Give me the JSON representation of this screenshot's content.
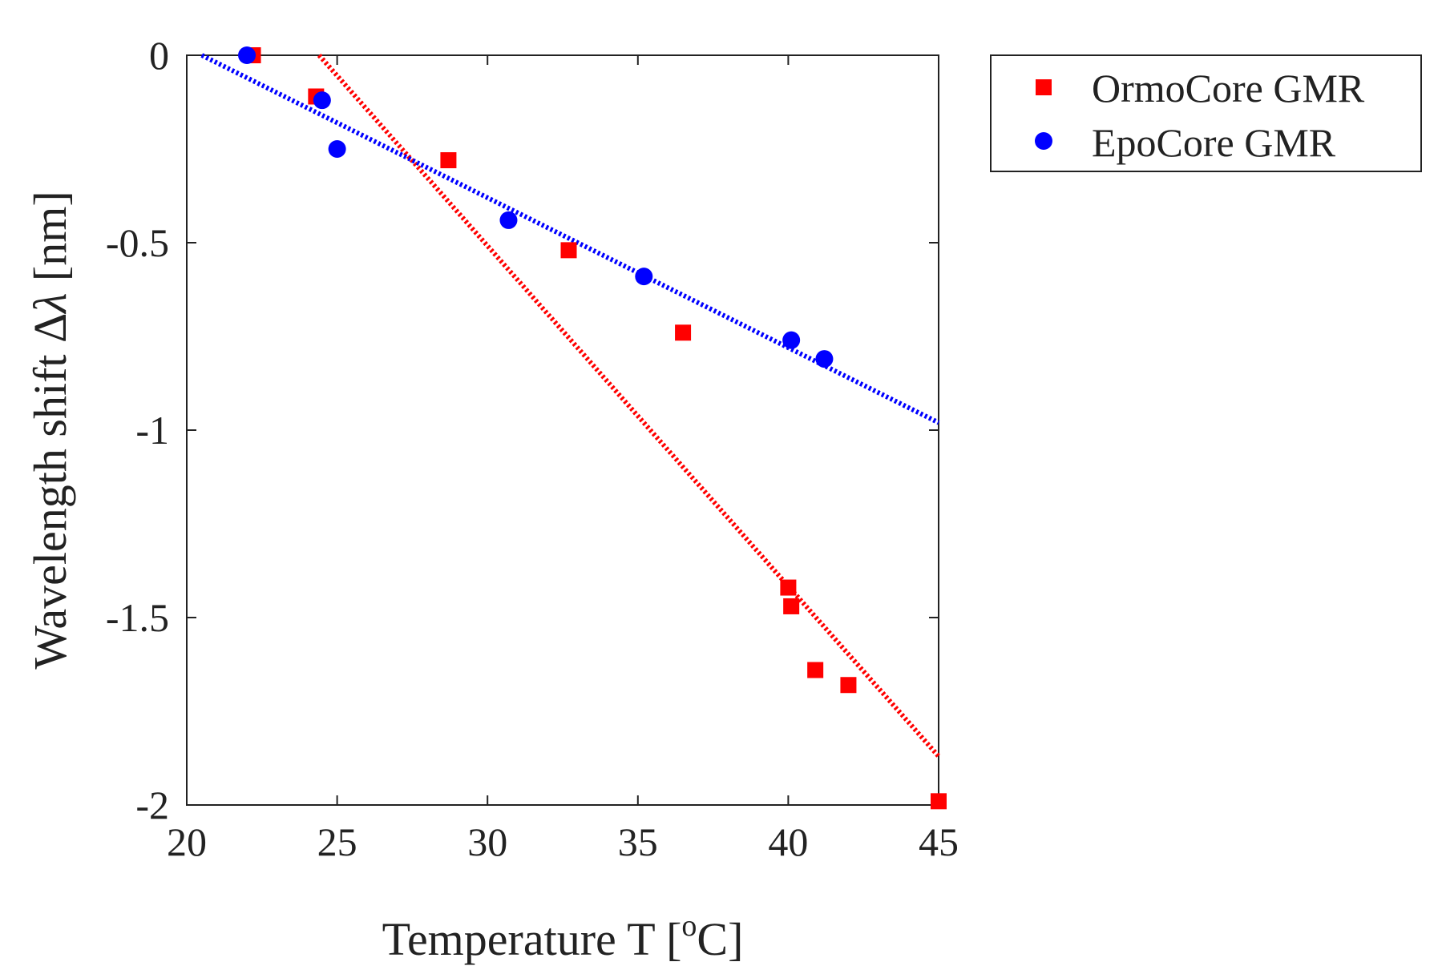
{
  "chart_data": {
    "type": "scatter",
    "xlabel": "Temperature T [°C]",
    "xlabel_parts": {
      "before": "Temperature T [",
      "sup": "o",
      "after": "C]"
    },
    "ylabel": "Wavelength shift Δλ [nm]",
    "ylabel_parts": {
      "before": "Wavelength shift Δ",
      "italic": "λ",
      "after": " [nm]"
    },
    "xlim": [
      20,
      45
    ],
    "ylim": [
      -2,
      0
    ],
    "xticks": [
      20,
      25,
      30,
      35,
      40,
      45
    ],
    "xtick_labels": [
      "20",
      "25",
      "30",
      "35",
      "40",
      "45"
    ],
    "yticks": [
      0,
      -0.5,
      -1,
      -1.5,
      -2
    ],
    "ytick_labels": [
      "0",
      "-0.5",
      "-1",
      "-1.5",
      "-2"
    ],
    "grid": false,
    "legend_position": "outside-right-top",
    "series": [
      {
        "name": "OrmoCore GMR",
        "marker": "square",
        "color": "#ff0000",
        "points": [
          {
            "x": 22.2,
            "y": 0.0
          },
          {
            "x": 24.3,
            "y": -0.11
          },
          {
            "x": 28.7,
            "y": -0.28
          },
          {
            "x": 32.7,
            "y": -0.52
          },
          {
            "x": 36.5,
            "y": -0.74
          },
          {
            "x": 40.0,
            "y": -1.42
          },
          {
            "x": 40.1,
            "y": -1.47
          },
          {
            "x": 40.9,
            "y": -1.64
          },
          {
            "x": 42.0,
            "y": -1.68
          },
          {
            "x": 45.0,
            "y": -1.99
          }
        ],
        "fit": {
          "x": [
            24.4,
            45.0
          ],
          "y": [
            0.0,
            -1.87
          ]
        }
      },
      {
        "name": "EpoCore GMR",
        "marker": "circle",
        "color": "#0000ff",
        "points": [
          {
            "x": 22.0,
            "y": 0.0
          },
          {
            "x": 24.5,
            "y": -0.12
          },
          {
            "x": 25.0,
            "y": -0.25
          },
          {
            "x": 30.7,
            "y": -0.44
          },
          {
            "x": 35.2,
            "y": -0.59
          },
          {
            "x": 40.1,
            "y": -0.76
          },
          {
            "x": 41.2,
            "y": -0.81
          }
        ],
        "fit": {
          "x": [
            20.5,
            45.0
          ],
          "y": [
            0.0,
            -0.98
          ]
        }
      }
    ]
  }
}
